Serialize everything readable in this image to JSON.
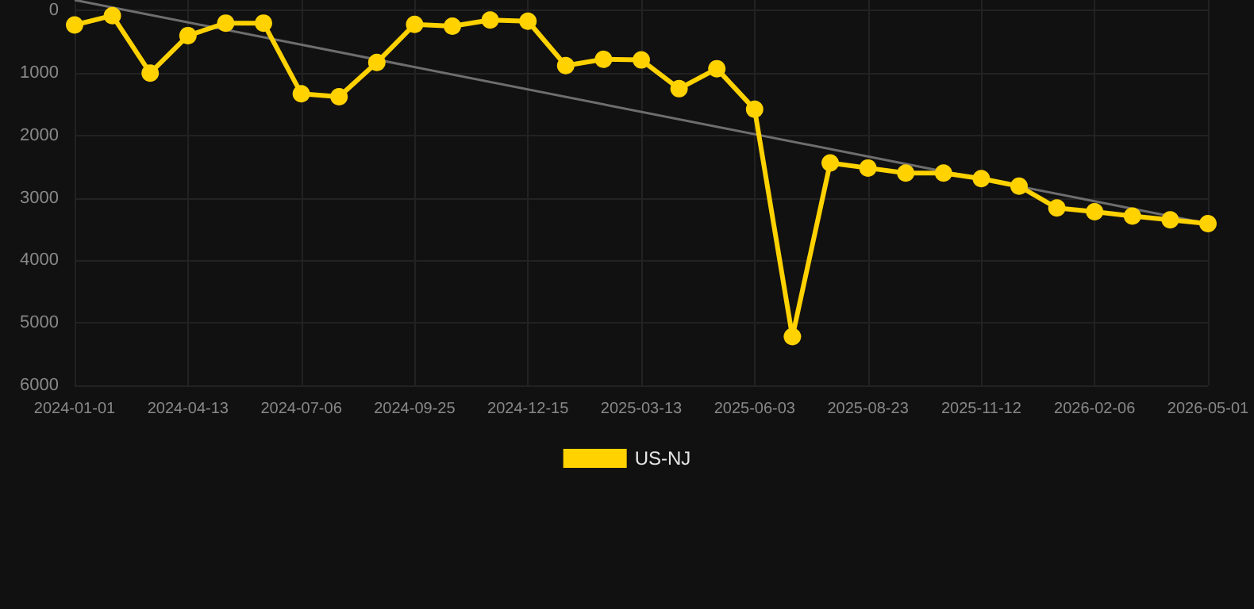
{
  "chart_data": {
    "type": "line",
    "categories": [
      "2024-01-01",
      null,
      null,
      "2024-04-13",
      null,
      null,
      "2024-07-06",
      null,
      null,
      "2024-09-25",
      null,
      null,
      "2024-12-15",
      null,
      null,
      "2025-03-13",
      null,
      null,
      "2025-06-03",
      null,
      null,
      "2025-08-23",
      null,
      null,
      "2025-11-12",
      null,
      null,
      "2026-02-06",
      null,
      null,
      "2026-05-01"
    ],
    "series": [
      {
        "name": "US-NJ",
        "color": "#ffd200",
        "marker": "circle",
        "values": [
          230,
          80,
          1000,
          400,
          200,
          200,
          1330,
          1380,
          830,
          220,
          250,
          150,
          170,
          880,
          780,
          790,
          1250,
          930,
          1580,
          5220,
          2440,
          2520,
          2600,
          2600,
          2690,
          2810,
          3160,
          3220,
          3290,
          3350,
          3410
        ]
      },
      {
        "type": "line",
        "color": "#6e6e6e",
        "marker": "none",
        "values": [
          -170,
          null,
          null,
          null,
          null,
          null,
          null,
          null,
          null,
          null,
          null,
          null,
          null,
          null,
          null,
          null,
          null,
          null,
          null,
          null,
          null,
          null,
          null,
          null,
          null,
          null,
          null,
          null,
          null,
          null,
          3410
        ]
      }
    ],
    "ylim": [
      6000,
      -170
    ],
    "yticks": [
      0,
      1000,
      2000,
      3000,
      4000,
      5000,
      6000
    ],
    "grid": true,
    "legend": "bottom"
  }
}
